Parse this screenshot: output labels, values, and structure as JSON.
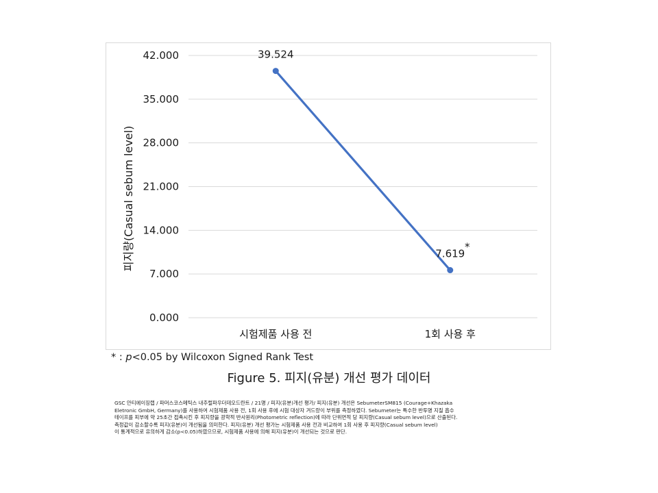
{
  "chart_data": {
    "type": "line",
    "categories": [
      "시험제품 사용 전",
      "1회 사용 후"
    ],
    "series": [
      {
        "values": [
          39.524,
          7.619
        ],
        "data_labels": [
          "39.524",
          "7.619"
        ],
        "color": "#4472C4"
      }
    ],
    "ylabel": "피지량(Casual sebum level)",
    "xlabel": "",
    "ylim": [
      0,
      42
    ],
    "yticks": [
      0,
      7,
      14,
      21,
      28,
      35,
      42
    ],
    "ytick_labels": [
      "0.000",
      "7.000",
      "14.000",
      "21.000",
      "28.000",
      "35.000",
      "42.000"
    ],
    "grid": true,
    "significance_marker": "*",
    "significance_marker_category": "1회 사용 후"
  },
  "footnote": {
    "prefix": "* : ",
    "p_symbol": "p",
    "rest": "<0.05 by Wilcoxon Signed Rank Test"
  },
  "caption": "Figure 5. 피지(유분) 개선 평가 데이터",
  "description": [
    "GSC 안티에이징랩 / 파머스코스메틱스 내추럴파우더데오드란트 / 21명 / 피지(유분)개선 평가/ 피지(유분) 개선은 SebumeterSM815 (Courage+Khazaka",
    "Eletronic GmbH, Germany)를 사용하여 시험제품 사용 전, 1회 사용 후에 시험 대상자 겨드랑이 부위를 측정하였다. Sebumeter는 특수한 반투명 지질 흡수",
    "테이프를 피부에 약 25초간 접촉시킨 후 피지량을 광학적 반사원리(Photometric reflection)에 따라 단위면적 당 피지량(Casual sebum level)으로 산출된다.",
    "측정값이 감소할수록 피지(유분)이 개선됨을 의미한다. 피지(유분) 개선 평가는 시험제품 사용 전과 비교하여 1회 사용 후 피지량(Casual sebum level)",
    "이 통계적으로 유의하게 감소(p<0.05)하였으므로, 시험제품 사용에 의해 피지(유분)이 개선되는 것으로 판단."
  ]
}
